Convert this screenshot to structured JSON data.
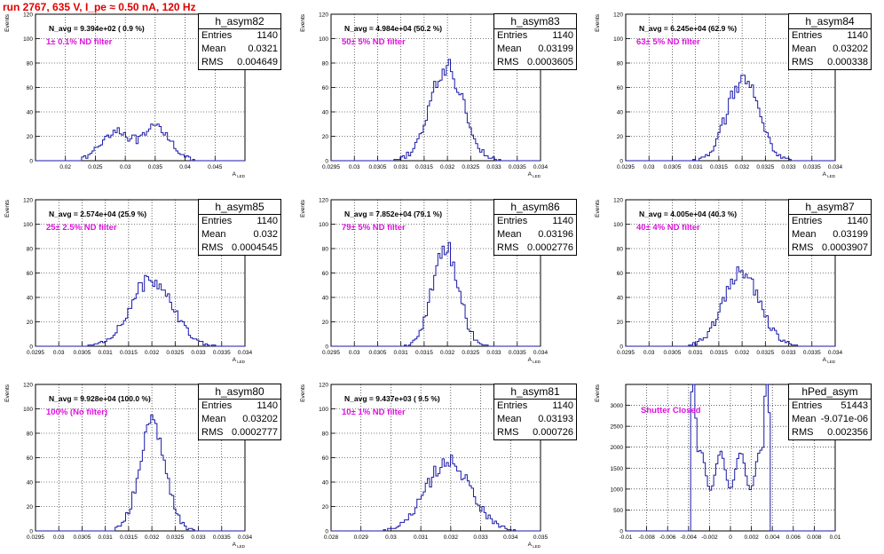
{
  "title": "run 2767,   635 V, I_pe ≈ 0.50 nA, 120 Hz",
  "chart_data": [
    {
      "type": "histogram",
      "name": "h_asym82",
      "xlim": [
        0.015,
        0.05
      ],
      "ylim": [
        0,
        120
      ],
      "ylabel": "Events",
      "xlabel": "A_LED",
      "xticks": [
        0.02,
        0.025,
        0.03,
        0.035,
        0.04,
        0.045
      ],
      "yticks": [
        0,
        20,
        40,
        60,
        80,
        100,
        120
      ],
      "stats": {
        "Entries": "1140",
        "Mean": "0.0321",
        "RMS": "0.004649"
      },
      "navg": "N_avg = 9.394e+02 ( 0.9 %)",
      "filter": "1± 0.1% ND filter",
      "dist": {
        "type": "bimodal",
        "peaks": [
          [
            0.0285,
            0.0025,
            25
          ],
          [
            0.0355,
            0.0022,
            27
          ]
        ]
      }
    },
    {
      "type": "histogram",
      "name": "h_asym83",
      "xlim": [
        0.0295,
        0.034
      ],
      "ylim": [
        0,
        120
      ],
      "ylabel": "Events",
      "xlabel": "A_LED",
      "xticks": [
        0.0295,
        0.03,
        0.0305,
        0.031,
        0.0315,
        0.032,
        0.0325,
        0.033,
        0.0335,
        0.034
      ],
      "yticks": [
        0,
        20,
        40,
        60,
        80,
        100,
        120
      ],
      "stats": {
        "Entries": "1140",
        "Mean": "0.03199",
        "RMS": "0.0003605"
      },
      "navg": "N_avg = 4.984e+04 (50.2 %)",
      "filter": "50± 5% ND filter",
      "dist": {
        "type": "gauss",
        "mean": 0.03199,
        "sigma": 0.00036,
        "peak": 76
      }
    },
    {
      "type": "histogram",
      "name": "h_asym84",
      "xlim": [
        0.0295,
        0.034
      ],
      "ylim": [
        0,
        120
      ],
      "ylabel": "Events",
      "xlabel": "A_LED",
      "xticks": [
        0.0295,
        0.03,
        0.0305,
        0.031,
        0.0315,
        0.032,
        0.0325,
        0.033,
        0.0335,
        0.034
      ],
      "yticks": [
        0,
        20,
        40,
        60,
        80,
        100,
        120
      ],
      "stats": {
        "Entries": "1140",
        "Mean": "0.03202",
        "RMS": "0.000338"
      },
      "navg": "N_avg = 6.245e+04 (62.9 %)",
      "filter": "63± 5% ND filter",
      "dist": {
        "type": "gauss",
        "mean": 0.03202,
        "sigma": 0.00034,
        "peak": 66
      }
    },
    {
      "type": "histogram",
      "name": "h_asym85",
      "xlim": [
        0.0295,
        0.034
      ],
      "ylim": [
        0,
        120
      ],
      "ylabel": "Events",
      "xlabel": "A_LED",
      "xticks": [
        0.0295,
        0.03,
        0.0305,
        0.031,
        0.0315,
        0.032,
        0.0325,
        0.033,
        0.0335,
        0.034
      ],
      "yticks": [
        0,
        20,
        40,
        60,
        80,
        100,
        120
      ],
      "stats": {
        "Entries": "1140",
        "Mean": "0.032",
        "RMS": "0.0004545"
      },
      "navg": "N_avg = 2.574e+04 (25.9 %)",
      "filter": "25± 2.5% ND filter",
      "dist": {
        "type": "gauss",
        "mean": 0.032,
        "sigma": 0.00045,
        "peak": 55
      }
    },
    {
      "type": "histogram",
      "name": "h_asym86",
      "xlim": [
        0.0295,
        0.034
      ],
      "ylim": [
        0,
        120
      ],
      "ylabel": "Events",
      "xlabel": "A_LED",
      "xticks": [
        0.0295,
        0.03,
        0.0305,
        0.031,
        0.0315,
        0.032,
        0.0325,
        0.033,
        0.0335,
        0.034
      ],
      "yticks": [
        0,
        20,
        40,
        60,
        80,
        100,
        120
      ],
      "stats": {
        "Entries": "1140",
        "Mean": "0.03196",
        "RMS": "0.0002776"
      },
      "navg": "N_avg = 7.852e+04 (79.1 %)",
      "filter": "79± 5% ND filter",
      "dist": {
        "type": "gauss",
        "mean": 0.03196,
        "sigma": 0.00028,
        "peak": 81
      }
    },
    {
      "type": "histogram",
      "name": "h_asym87",
      "xlim": [
        0.0295,
        0.034
      ],
      "ylim": [
        0,
        120
      ],
      "ylabel": "Events",
      "xlabel": "A_LED",
      "xticks": [
        0.0295,
        0.03,
        0.0305,
        0.031,
        0.0315,
        0.032,
        0.0325,
        0.033,
        0.0335,
        0.034
      ],
      "yticks": [
        0,
        20,
        40,
        60,
        80,
        100,
        120
      ],
      "stats": {
        "Entries": "1140",
        "Mean": "0.03199",
        "RMS": "0.0003907"
      },
      "navg": "N_avg = 4.005e+04 (40.3 %)",
      "filter": "40± 4% ND filter",
      "dist": {
        "type": "gauss",
        "mean": 0.03199,
        "sigma": 0.00039,
        "peak": 60
      }
    },
    {
      "type": "histogram",
      "name": "h_asym80",
      "xlim": [
        0.0295,
        0.034
      ],
      "ylim": [
        0,
        120
      ],
      "ylabel": "Events",
      "xlabel": "A_LED",
      "xticks": [
        0.0295,
        0.03,
        0.0305,
        0.031,
        0.0315,
        0.032,
        0.0325,
        0.033,
        0.0335,
        0.034
      ],
      "yticks": [
        0,
        20,
        40,
        60,
        80,
        100,
        120
      ],
      "stats": {
        "Entries": "1140",
        "Mean": "0.03202",
        "RMS": "0.0002777"
      },
      "navg": "N_avg = 9.928e+04 (100.0 %)",
      "filter": "100% (No filter)",
      "dist": {
        "type": "gauss",
        "mean": 0.03202,
        "sigma": 0.00028,
        "peak": 88
      }
    },
    {
      "type": "histogram",
      "name": "h_asym81",
      "xlim": [
        0.028,
        0.035
      ],
      "ylim": [
        0,
        120
      ],
      "ylabel": "Events",
      "xlabel": "A_LED",
      "xticks": [
        0.028,
        0.029,
        0.03,
        0.031,
        0.032,
        0.033,
        0.034,
        0.035
      ],
      "yticks": [
        0,
        20,
        40,
        60,
        80,
        100,
        120
      ],
      "stats": {
        "Entries": "1140",
        "Mean": "0.03193",
        "RMS": "0.000726"
      },
      "navg": "N_avg = 9.437e+03 ( 9.5 %)",
      "filter": "10± 1% ND filter",
      "dist": {
        "type": "gauss",
        "mean": 0.03193,
        "sigma": 0.00073,
        "peak": 58
      }
    },
    {
      "type": "histogram",
      "name": "hPed_asym",
      "xlim": [
        -0.01,
        0.01
      ],
      "ylim": [
        0,
        3500
      ],
      "ylabel": "Events",
      "xlabel": "",
      "xticks": [
        -0.01,
        -0.008,
        -0.006,
        -0.004,
        -0.002,
        0,
        0.002,
        0.004,
        0.006,
        0.008,
        0.01
      ],
      "yticks": [
        0,
        500,
        1000,
        1500,
        2000,
        2500,
        3000
      ],
      "stats": {
        "Entries": "51443",
        "Mean": "-9.071e-06",
        "RMS": "0.002356"
      },
      "navg": "",
      "filter": "Shutter Closed",
      "dist": {
        "type": "pedestal",
        "range": [
          -0.0038,
          0.0038
        ],
        "edges": [
          3200,
          3300
        ],
        "mid": 1000
      }
    }
  ]
}
